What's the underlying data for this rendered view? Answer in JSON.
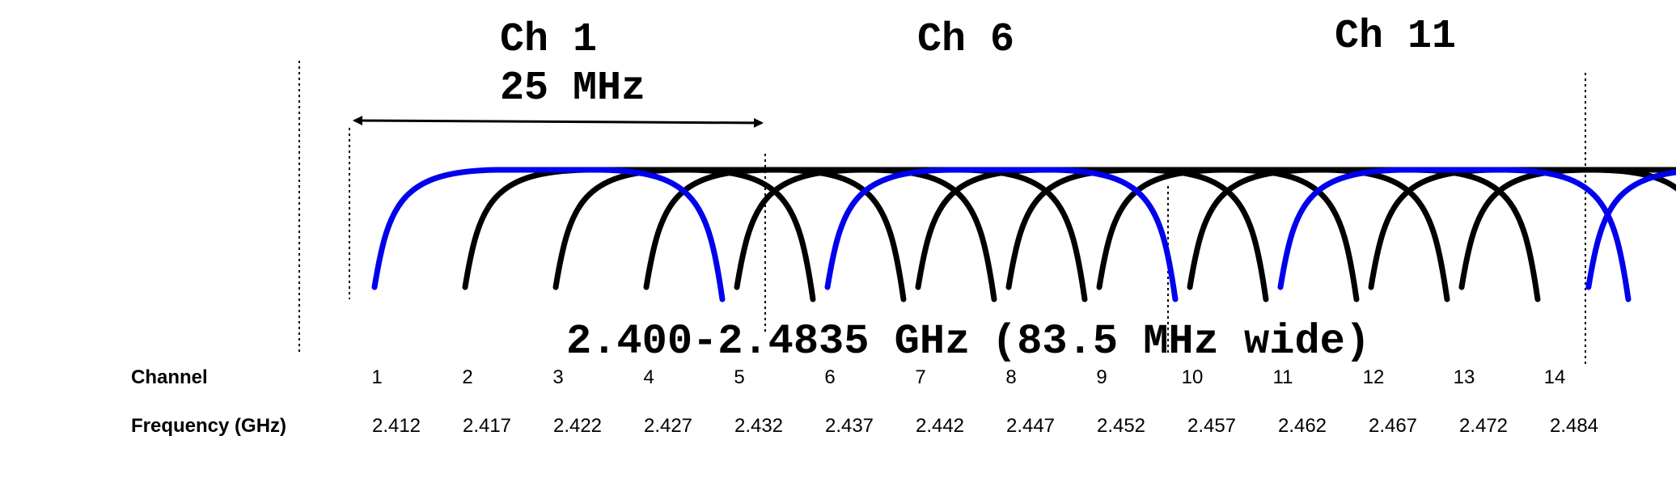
{
  "channel_labels": {
    "ch1": "Ch 1",
    "bandwidth": "25 MHz",
    "ch6": "Ch 6",
    "ch11": "Ch 11"
  },
  "band_range": "2.400-2.4835 GHz",
  "band_width": "(83.5 MHz wide)",
  "table": {
    "channel_header": "Channel",
    "frequency_header": "Frequency (GHz)",
    "channels": [
      "1",
      "2",
      "3",
      "4",
      "5",
      "6",
      "7",
      "8",
      "9",
      "10",
      "11",
      "12",
      "13",
      "14"
    ],
    "frequencies": [
      "2.412",
      "2.417",
      "2.422",
      "2.427",
      "2.432",
      "2.437",
      "2.442",
      "2.447",
      "2.452",
      "2.457",
      "2.462",
      "2.467",
      "2.472",
      "2.484"
    ]
  },
  "colors": {
    "highlight_channels": "#0000ee",
    "other_channels": "#000000"
  },
  "highlighted_channels": [
    1,
    6,
    11,
    14
  ]
}
